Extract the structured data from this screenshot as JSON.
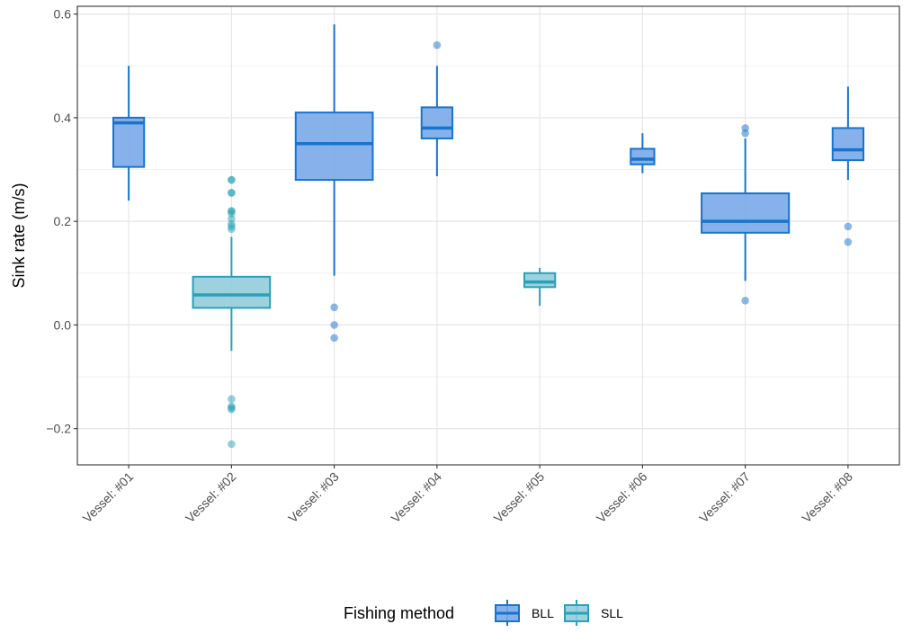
{
  "chart_data": {
    "type": "box",
    "title": "",
    "xlabel": "",
    "ylabel": "Sink rate (m/s)",
    "ylim": [
      -0.27,
      0.615
    ],
    "yticks": [
      -0.2,
      0.0,
      0.2,
      0.4,
      0.6
    ],
    "ytick_labels": [
      "−0.2",
      "0.0",
      "0.2",
      "0.4",
      "0.6"
    ],
    "grid": true,
    "legend": {
      "title": "Fishing method",
      "position": "bottom",
      "entries": [
        {
          "name": "BLL",
          "color": "#1874CD",
          "fill": "#7AA9E8"
        },
        {
          "name": "SLL",
          "color": "#2AA1B6",
          "fill": "#93CCDB"
        }
      ]
    },
    "categories": [
      "Vessel: #01",
      "Vessel: #02",
      "Vessel: #03",
      "Vessel: #04",
      "Vessel: #05",
      "Vessel: #06",
      "Vessel: #07",
      "Vessel: #08"
    ],
    "boxes": [
      {
        "category": "Vessel: #01",
        "method": "BLL",
        "min": 0.24,
        "q1": 0.305,
        "median": 0.39,
        "q3": 0.4,
        "max": 0.5,
        "width": 0.3,
        "outliers": []
      },
      {
        "category": "Vessel: #02",
        "method": "SLL",
        "min": -0.05,
        "q1": 0.033,
        "median": 0.058,
        "q3": 0.093,
        "max": 0.17,
        "width": 0.75,
        "outliers": [
          0.28,
          0.28,
          0.255,
          0.255,
          0.22,
          0.22,
          0.215,
          0.205,
          0.195,
          0.19,
          0.185,
          -0.143,
          -0.157,
          -0.16,
          -0.163,
          -0.23
        ]
      },
      {
        "category": "Vessel: #03",
        "method": "BLL",
        "min": 0.095,
        "q1": 0.28,
        "median": 0.35,
        "q3": 0.41,
        "max": 0.58,
        "width": 0.75,
        "outliers": [
          0.034,
          0.0,
          -0.025
        ]
      },
      {
        "category": "Vessel: #04",
        "method": "BLL",
        "min": 0.287,
        "q1": 0.36,
        "median": 0.38,
        "q3": 0.42,
        "max": 0.5,
        "width": 0.3,
        "outliers": [
          0.54
        ]
      },
      {
        "category": "Vessel: #05",
        "method": "SLL",
        "min": 0.037,
        "q1": 0.073,
        "median": 0.083,
        "q3": 0.1,
        "max": 0.11,
        "width": 0.3,
        "outliers": []
      },
      {
        "category": "Vessel: #06",
        "method": "BLL",
        "min": 0.293,
        "q1": 0.31,
        "median": 0.32,
        "q3": 0.34,
        "max": 0.37,
        "width": 0.23,
        "outliers": []
      },
      {
        "category": "Vessel: #07",
        "method": "BLL",
        "min": 0.085,
        "q1": 0.178,
        "median": 0.2,
        "q3": 0.254,
        "max": 0.36,
        "width": 0.85,
        "outliers": [
          0.38,
          0.37,
          0.047
        ]
      },
      {
        "category": "Vessel: #08",
        "method": "BLL",
        "min": 0.28,
        "q1": 0.318,
        "median": 0.338,
        "q3": 0.38,
        "max": 0.46,
        "width": 0.3,
        "outliers": [
          0.19,
          0.16
        ]
      }
    ]
  }
}
